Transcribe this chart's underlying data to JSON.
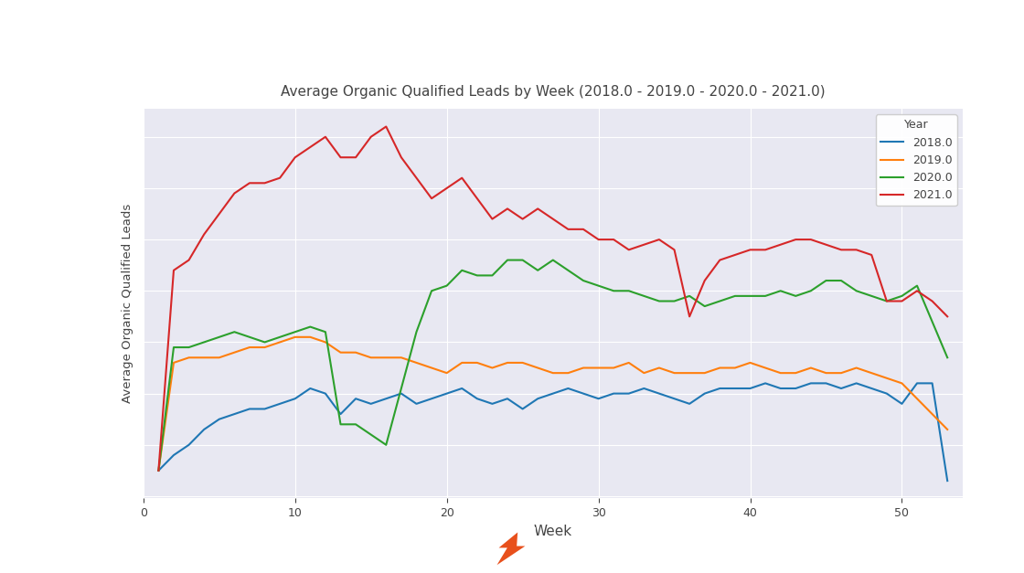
{
  "title": "Average Organic Qualified Leads by Week (2018.0 - 2019.0 - 2020.0 - 2021.0)",
  "xlabel": "Week",
  "ylabel": "Average Organic Qualified Leads",
  "legend_title": "Year",
  "years": [
    "2018.0",
    "2019.0",
    "2020.0",
    "2021.0"
  ],
  "colors": [
    "#1f77b4",
    "#ff7f0e",
    "#2ca02c",
    "#d62728"
  ],
  "background_color": "#e8e8f2",
  "fig_background": "#ffffff",
  "weeks": [
    1,
    2,
    3,
    4,
    5,
    6,
    7,
    8,
    9,
    10,
    11,
    12,
    13,
    14,
    15,
    16,
    17,
    18,
    19,
    20,
    21,
    22,
    23,
    24,
    25,
    26,
    27,
    28,
    29,
    30,
    31,
    32,
    33,
    34,
    35,
    36,
    37,
    38,
    39,
    40,
    41,
    42,
    43,
    44,
    45,
    46,
    47,
    48,
    49,
    50,
    51,
    52,
    53
  ],
  "data_2018": [
    5,
    8,
    10,
    13,
    15,
    16,
    17,
    17,
    18,
    19,
    21,
    20,
    16,
    19,
    18,
    19,
    20,
    18,
    19,
    20,
    21,
    19,
    18,
    19,
    17,
    19,
    20,
    21,
    20,
    19,
    20,
    20,
    21,
    20,
    19,
    18,
    20,
    21,
    21,
    21,
    22,
    21,
    21,
    22,
    22,
    21,
    22,
    21,
    20,
    18,
    22,
    22,
    3
  ],
  "data_2019": [
    5,
    26,
    27,
    27,
    27,
    28,
    29,
    29,
    30,
    31,
    31,
    30,
    28,
    28,
    27,
    27,
    27,
    26,
    25,
    24,
    26,
    26,
    25,
    26,
    26,
    25,
    24,
    24,
    25,
    25,
    25,
    26,
    24,
    25,
    24,
    24,
    24,
    25,
    25,
    26,
    25,
    24,
    24,
    25,
    24,
    24,
    25,
    24,
    23,
    22,
    19,
    16,
    13
  ],
  "data_2020": [
    5,
    29,
    29,
    30,
    31,
    32,
    31,
    30,
    31,
    32,
    33,
    32,
    14,
    14,
    12,
    10,
    21,
    32,
    40,
    41,
    44,
    43,
    43,
    46,
    46,
    44,
    46,
    44,
    42,
    41,
    40,
    40,
    39,
    38,
    38,
    39,
    37,
    38,
    39,
    39,
    39,
    40,
    39,
    40,
    42,
    42,
    40,
    39,
    38,
    39,
    41,
    34,
    27
  ],
  "data_2021": [
    5,
    44,
    46,
    51,
    55,
    59,
    61,
    61,
    62,
    66,
    68,
    70,
    66,
    66,
    70,
    72,
    66,
    62,
    58,
    60,
    62,
    58,
    54,
    56,
    54,
    56,
    54,
    52,
    52,
    50,
    50,
    48,
    49,
    50,
    48,
    35,
    42,
    46,
    47,
    48,
    48,
    49,
    50,
    50,
    49,
    48,
    48,
    47,
    38,
    38,
    40,
    38,
    35
  ],
  "xlim": [
    0,
    54
  ],
  "xticks": [
    0,
    10,
    20,
    30,
    40,
    50
  ],
  "logo_color": "#e8501c"
}
